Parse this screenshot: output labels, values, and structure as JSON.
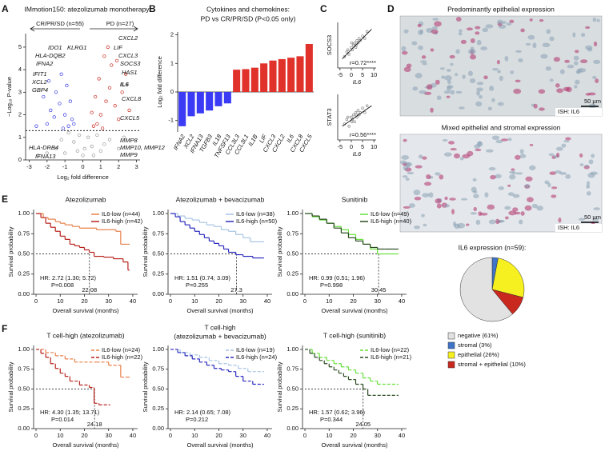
{
  "panels": [
    "A",
    "B",
    "C",
    "D",
    "E",
    "F"
  ],
  "group_labels": [
    "CR/PR/SD (n=55)",
    "PD (n=27)"
  ],
  "images": [
    {
      "title": "Predominantly epithelial expression",
      "scale_bar": "50 µm",
      "stain": "ISH: IL6"
    },
    {
      "title": "Mixed epithelial and stromal expression",
      "scale_bar": "50 µm",
      "stain": "ISH: IL6"
    }
  ],
  "chart_data": [
    {
      "type": "scatter",
      "title": "IMmotion150: atezolizumab monotherapy",
      "xlabel": "Log₂ fold difference",
      "ylabel": "−Log₁₀ P-value",
      "xlim": [
        -3.2,
        3.2
      ],
      "ylim": [
        0,
        5.6
      ],
      "xticks": [
        -3,
        -2,
        -1,
        0,
        1,
        2,
        3
      ],
      "yticks": [
        0,
        1,
        2,
        3,
        4,
        5
      ],
      "threshold": 1.3,
      "annotations": [
        "IDO1",
        "KLRG1",
        "HLA-DQB2",
        "IFNA2",
        "IFIT1",
        "XCL2",
        "GBP4",
        "HLA-DRB4",
        "IFNA13",
        "CXCL2",
        "LIF",
        "CXCL3",
        "SOCS3",
        "HAS1",
        "IL6",
        "CXCL8",
        "CXCL5",
        "MMP8",
        "MMP10, MMP12",
        "MMP9"
      ],
      "series": [
        {
          "color": "#9a9a9a",
          "x": [
            -1,
            -0.5,
            0,
            0.5,
            1,
            -1.5,
            1.5,
            -0.2,
            0.3,
            -0.8,
            0.8,
            -2,
            2,
            0.1,
            -0.3,
            0.6,
            -1.2,
            1.2,
            -2.5,
            2.3
          ],
          "y": [
            0.3,
            0.8,
            0.2,
            0.6,
            0.4,
            0.5,
            0.9,
            1.1,
            1.0,
            1.2,
            1.1,
            0.3,
            0.5,
            0.5,
            0.4,
            0.2,
            0.9,
            0.7,
            0.2,
            1.0
          ]
        },
        {
          "color": "#3a3ae8",
          "x": [
            -0.8,
            -1,
            -1.3,
            -0.6,
            -1.8,
            -2,
            -1.5,
            -0.9,
            -2.2,
            -1.1,
            -0.5,
            -1.6,
            -2.6,
            -0.7,
            -1.2,
            -1.9
          ],
          "y": [
            1.5,
            2,
            2.5,
            1.8,
            2.2,
            1.6,
            3,
            3.3,
            2.8,
            1.4,
            1.6,
            1.9,
            1.5,
            2.6,
            3.8,
            3.5
          ]
        },
        {
          "color": "#c8281e",
          "x": [
            0.8,
            1,
            1.3,
            0.6,
            1.8,
            2,
            1.5,
            0.9,
            2.2,
            1.1,
            1.6,
            1.2,
            2.4,
            0.7,
            1.4,
            2.6,
            1.9,
            0.5
          ],
          "y": [
            1.6,
            2,
            2.6,
            1.5,
            2.4,
            1.8,
            3.2,
            3.6,
            3,
            1.4,
            4.2,
            4.6,
            3.8,
            2.8,
            5,
            2.2,
            4.4,
            2.1
          ]
        }
      ]
    },
    {
      "type": "bar",
      "title": "Cytokines and chemokines:",
      "subtitle": "PD vs CR/PR/SD (P<0.05 only)",
      "ylabel": "Log₂ fold difference",
      "ylim": [
        -1.4,
        2.1
      ],
      "yticks": [
        -1,
        0,
        1,
        2
      ],
      "categories": [
        "IFNA2",
        "XCL2",
        "IFNA13",
        "TGFB3",
        "IL18",
        "TNFSF13",
        "CCL3L3",
        "CCL3L1",
        "IL1B",
        "LIF",
        "CXCL3",
        "CXCL2",
        "IL6",
        "CXCL8",
        "CXCL5"
      ],
      "values": [
        -1.2,
        -0.85,
        -0.75,
        -0.65,
        -0.5,
        -0.4,
        0.78,
        0.8,
        0.85,
        1.0,
        1.1,
        1.15,
        1.2,
        1.25,
        1.68
      ],
      "colors": {
        "negative": "#3b3bf5",
        "positive": "#e0312a"
      }
    },
    {
      "type": "scatter",
      "xlabel": "IL6",
      "ylabel": "SOCS3",
      "annotation": "r=0.72****",
      "xlim": [
        -6,
        11
      ],
      "ylim": [
        0,
        1
      ],
      "xticks": [
        -5,
        0,
        5,
        10
      ],
      "trendline": {
        "x": [
          -4,
          9
        ],
        "y": [
          0.2,
          0.85
        ]
      },
      "series": [
        {
          "color": "#888",
          "x": [
            -3,
            -2,
            -1,
            0,
            0.5,
            1,
            1.5,
            2,
            2.5,
            3,
            3.5,
            4,
            5,
            6,
            7,
            -1.5,
            0.2,
            2.2
          ],
          "y": [
            0.25,
            0.35,
            0.3,
            0.45,
            0.4,
            0.5,
            0.55,
            0.45,
            0.6,
            0.55,
            0.65,
            0.6,
            0.7,
            0.65,
            0.8,
            0.4,
            0.55,
            0.5
          ]
        }
      ]
    },
    {
      "type": "scatter",
      "xlabel": "IL6",
      "ylabel": "STAT3",
      "annotation": "r=0.56****",
      "xlim": [
        -6,
        11
      ],
      "ylim": [
        0,
        1
      ],
      "xticks": [
        -5,
        0,
        5,
        10
      ],
      "trendline": {
        "x": [
          -4,
          9
        ],
        "y": [
          0.3,
          0.75
        ]
      },
      "series": [
        {
          "color": "#888",
          "x": [
            -3,
            -2,
            -1,
            0,
            0.5,
            1,
            1.5,
            2,
            2.5,
            3,
            3.5,
            4,
            5,
            6,
            7,
            -1.5,
            0.2,
            2.2
          ],
          "y": [
            0.35,
            0.45,
            0.3,
            0.5,
            0.45,
            0.55,
            0.4,
            0.6,
            0.5,
            0.65,
            0.55,
            0.6,
            0.7,
            0.6,
            0.75,
            0.5,
            0.4,
            0.55
          ]
        }
      ]
    },
    {
      "type": "pie",
      "title": "IL6 expression (n=59):",
      "categories": [
        "negative (61%)",
        "stromal (3%)",
        "epithelial (26%)",
        "stromal + epithelial (10%)"
      ],
      "values": [
        61,
        3,
        26,
        10
      ],
      "colors": [
        "#e2e2e2",
        "#3f74c8",
        "#f6f020",
        "#c8281e"
      ]
    },
    {
      "type": "km",
      "title": "Atezolizumab",
      "xlabel": "Overall survival (months)",
      "ylabel": "Survival probability",
      "hr": "HR: 2.72 (1.30; 5.72)",
      "p": "P=0.008",
      "median": 22.08,
      "xlim": [
        -1,
        42
      ],
      "ylim": [
        0,
        1.05
      ],
      "xticks": [
        0,
        10,
        20,
        30,
        40
      ],
      "yticks": [
        {
          "value": 0,
          "label": "0.00"
        },
        {
          "value": 0.25,
          "label": "0.25"
        },
        {
          "value": 0.5,
          "label": "0.50"
        },
        {
          "value": 0.75,
          "label": "0.75"
        },
        {
          "value": 1,
          "label": "1.00"
        }
      ],
      "dashed": false,
      "series": [
        {
          "name": "IL6-low (n=44)",
          "color": "#e8804a",
          "x": [
            0,
            3,
            5,
            8,
            10,
            12,
            15,
            18,
            25,
            30,
            33,
            35,
            38
          ],
          "y": [
            1,
            0.95,
            0.93,
            0.9,
            0.88,
            0.86,
            0.84,
            0.82,
            0.8,
            0.8,
            0.78,
            0.62,
            0.62
          ]
        },
        {
          "name": "IL6-high (n=42)",
          "color": "#b8221c",
          "x": [
            0,
            2,
            4,
            6,
            8,
            10,
            12,
            14,
            16,
            18,
            20,
            22,
            24,
            28,
            32,
            36,
            38
          ],
          "y": [
            1,
            0.95,
            0.88,
            0.83,
            0.78,
            0.72,
            0.68,
            0.62,
            0.6,
            0.58,
            0.55,
            0.52,
            0.47,
            0.46,
            0.44,
            0.4,
            0.3
          ]
        }
      ]
    },
    {
      "type": "km",
      "title": "Atezolizumab + bevacizumab",
      "xlabel": "Overall survival (months)",
      "ylabel": "Survival probability",
      "hr": "HR: 1.51 (0.74; 3.09)",
      "p": "P=0.255",
      "median": 27.3,
      "xlim": [
        -1,
        42
      ],
      "ylim": [
        0,
        1.05
      ],
      "xticks": [
        0,
        10,
        20,
        30,
        40
      ],
      "yticks": [
        {
          "value": 0,
          "label": "0.00"
        },
        {
          "value": 0.25,
          "label": "0.25"
        },
        {
          "value": 0.5,
          "label": "0.50"
        },
        {
          "value": 0.75,
          "label": "0.75"
        },
        {
          "value": 1,
          "label": "1.00"
        }
      ],
      "dashed": false,
      "series": [
        {
          "name": "IL6-low (n=38)",
          "color": "#a8c4e4",
          "x": [
            0,
            3,
            6,
            9,
            12,
            15,
            18,
            21,
            24,
            27,
            30,
            33,
            38
          ],
          "y": [
            1,
            0.97,
            0.94,
            0.92,
            0.89,
            0.86,
            0.84,
            0.8,
            0.78,
            0.74,
            0.7,
            0.65,
            0.65
          ]
        },
        {
          "name": "IL6-high (n=50)",
          "color": "#2a2abf",
          "x": [
            0,
            2,
            4,
            6,
            8,
            10,
            12,
            14,
            16,
            18,
            20,
            22,
            24,
            27,
            30,
            34,
            38
          ],
          "y": [
            1,
            0.96,
            0.9,
            0.86,
            0.82,
            0.78,
            0.74,
            0.7,
            0.66,
            0.63,
            0.6,
            0.56,
            0.52,
            0.49,
            0.47,
            0.45,
            0.45
          ]
        }
      ]
    },
    {
      "type": "km",
      "title": "Sunitinib",
      "xlabel": "Overall survival (months)",
      "ylabel": "Survival probability",
      "hr": "HR: 0.99 (0.51; 1.96)",
      "p": "P=0.998",
      "median": 30.45,
      "xlim": [
        -1,
        42
      ],
      "ylim": [
        0,
        1.05
      ],
      "xticks": [
        0,
        10,
        20,
        30,
        40
      ],
      "yticks": [
        {
          "value": 0,
          "label": "0.00"
        },
        {
          "value": 0.25,
          "label": "0.25"
        },
        {
          "value": 0.5,
          "label": "0.50"
        },
        {
          "value": 0.75,
          "label": "0.75"
        },
        {
          "value": 1,
          "label": "1.00"
        }
      ],
      "dashed": false,
      "series": [
        {
          "name": "IL6-low (n=49)",
          "color": "#66e03a",
          "x": [
            0,
            3,
            6,
            9,
            12,
            15,
            18,
            21,
            24,
            27,
            30,
            33,
            38
          ],
          "y": [
            1,
            0.96,
            0.92,
            0.88,
            0.84,
            0.8,
            0.74,
            0.68,
            0.62,
            0.56,
            0.5,
            0.5,
            0.5
          ]
        },
        {
          "name": "IL6-high (n=40)",
          "color": "#2a4a20",
          "x": [
            0,
            3,
            6,
            9,
            12,
            15,
            18,
            21,
            24,
            27,
            30,
            33,
            38
          ],
          "y": [
            1,
            0.97,
            0.93,
            0.88,
            0.82,
            0.76,
            0.7,
            0.66,
            0.62,
            0.58,
            0.56,
            0.56,
            0.56
          ]
        }
      ]
    },
    {
      "type": "km",
      "title": "T cell-high (atezolizumab)",
      "xlabel": "Overall survival (months)",
      "ylabel": "Survival probability",
      "hr": "HR: 4.30 (1.35; 13.71)",
      "p": "P=0.014",
      "median": 24.18,
      "xlim": [
        -1,
        42
      ],
      "ylim": [
        0,
        1.05
      ],
      "xticks": [
        0,
        10,
        20,
        30,
        40
      ],
      "yticks": [
        {
          "value": 0,
          "label": "0.00"
        },
        {
          "value": 0.25,
          "label": "0.25"
        },
        {
          "value": 0.5,
          "label": "0.50"
        },
        {
          "value": 0.75,
          "label": "0.75"
        },
        {
          "value": 1,
          "label": "1.00"
        }
      ],
      "dashed": true,
      "series": [
        {
          "name": "IL6-low (n=24)",
          "color": "#e8804a",
          "x": [
            0,
            4,
            8,
            12,
            16,
            20,
            25,
            30,
            35,
            38
          ],
          "y": [
            1,
            0.96,
            0.92,
            0.88,
            0.84,
            0.84,
            0.84,
            0.8,
            0.65,
            0.65
          ]
        },
        {
          "name": "IL6-high (n=22)",
          "color": "#b8221c",
          "x": [
            0,
            2,
            4,
            6,
            8,
            10,
            12,
            14,
            18,
            22,
            24,
            26,
            30
          ],
          "y": [
            1,
            0.95,
            0.9,
            0.82,
            0.76,
            0.7,
            0.66,
            0.6,
            0.55,
            0.52,
            0.32,
            0.3,
            0.3
          ]
        }
      ]
    },
    {
      "type": "km",
      "title": "T cell-high",
      "subtitle": "(atezolizumab + bevacizumab)",
      "xlabel": "Overall survival (months)",
      "ylabel": "Survival probability",
      "hr": "HR: 2.14 (0.65; 7.08)",
      "p": "P=0.212",
      "xlim": [
        -1,
        42
      ],
      "ylim": [
        0,
        1.05
      ],
      "xticks": [
        0,
        10,
        20,
        30,
        40
      ],
      "yticks": [
        {
          "value": 0,
          "label": "0.00"
        },
        {
          "value": 0.25,
          "label": "0.25"
        },
        {
          "value": 0.5,
          "label": "0.50"
        },
        {
          "value": 0.75,
          "label": "0.75"
        },
        {
          "value": 1,
          "label": "1.00"
        }
      ],
      "dashed": true,
      "series": [
        {
          "name": "IL6-low (n=19)",
          "color": "#a8c4e4",
          "x": [
            0,
            4,
            8,
            12,
            16,
            20,
            24,
            28,
            32,
            38
          ],
          "y": [
            1,
            0.96,
            0.93,
            0.9,
            0.86,
            0.82,
            0.8,
            0.76,
            0.72,
            0.72
          ]
        },
        {
          "name": "IL6-high (n=24)",
          "color": "#2a2abf",
          "x": [
            0,
            3,
            6,
            9,
            12,
            15,
            18,
            21,
            24,
            27,
            30,
            34,
            38
          ],
          "y": [
            1,
            0.96,
            0.92,
            0.88,
            0.84,
            0.8,
            0.76,
            0.74,
            0.72,
            0.66,
            0.6,
            0.56,
            0.56
          ]
        }
      ]
    },
    {
      "type": "km",
      "title": "T cell-high (sunitinib)",
      "xlabel": "Overall survival (months)",
      "ylabel": "Survival probability",
      "hr": "HR: 1.57 (0.62; 3.96)",
      "p": "P=0.344",
      "median": 24.05,
      "xlim": [
        -1,
        42
      ],
      "ylim": [
        0,
        1.05
      ],
      "xticks": [
        0,
        10,
        20,
        30,
        40
      ],
      "yticks": [
        {
          "value": 0,
          "label": "0.00"
        },
        {
          "value": 0.25,
          "label": "0.25"
        },
        {
          "value": 0.5,
          "label": "0.50"
        },
        {
          "value": 0.75,
          "label": "0.75"
        },
        {
          "value": 1,
          "label": "1.00"
        }
      ],
      "dashed": true,
      "series": [
        {
          "name": "IL6-low (n=22)",
          "color": "#66e03a",
          "x": [
            0,
            3,
            6,
            9,
            12,
            15,
            18,
            21,
            24,
            27,
            30,
            34,
            38
          ],
          "y": [
            1,
            0.95,
            0.9,
            0.86,
            0.82,
            0.78,
            0.74,
            0.7,
            0.64,
            0.6,
            0.56,
            0.56,
            0.56
          ]
        },
        {
          "name": "IL6-high (n=21)",
          "color": "#2a4a20",
          "x": [
            0,
            2,
            4,
            6,
            8,
            10,
            12,
            14,
            16,
            18,
            21,
            24,
            26,
            30,
            38
          ],
          "y": [
            1,
            0.95,
            0.9,
            0.86,
            0.82,
            0.78,
            0.74,
            0.7,
            0.66,
            0.62,
            0.56,
            0.5,
            0.42,
            0.42,
            0.42
          ]
        }
      ]
    }
  ]
}
